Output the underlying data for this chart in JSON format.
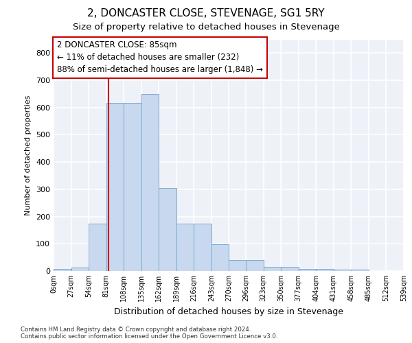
{
  "title": "2, DONCASTER CLOSE, STEVENAGE, SG1 5RY",
  "subtitle": "Size of property relative to detached houses in Stevenage",
  "xlabel": "Distribution of detached houses by size in Stevenage",
  "ylabel": "Number of detached properties",
  "bin_edges": [
    0,
    27,
    54,
    81,
    108,
    135,
    162,
    189,
    216,
    243,
    270,
    296,
    323,
    350,
    377,
    404,
    431,
    458,
    485,
    512,
    539
  ],
  "bar_heights": [
    7,
    13,
    175,
    617,
    617,
    650,
    305,
    175,
    175,
    97,
    40,
    40,
    14,
    14,
    8,
    7,
    5,
    5,
    0,
    0
  ],
  "bar_color": "#c8d8ee",
  "bar_edge_color": "#7aaad0",
  "vline_x": 85,
  "vline_color": "#cc0000",
  "ylim": [
    0,
    850
  ],
  "yticks": [
    0,
    100,
    200,
    300,
    400,
    500,
    600,
    700,
    800
  ],
  "annotation_text": "2 DONCASTER CLOSE: 85sqm\n← 11% of detached houses are smaller (232)\n88% of semi-detached houses are larger (1,848) →",
  "annotation_box_color": "#ffffff",
  "annotation_box_edge": "#cc0000",
  "footer_line1": "Contains HM Land Registry data © Crown copyright and database right 2024.",
  "footer_line2": "Contains public sector information licensed under the Open Government Licence v3.0.",
  "background_color": "#ffffff",
  "plot_bg_color": "#eef2f8",
  "grid_color": "#ffffff",
  "title_fontsize": 11,
  "subtitle_fontsize": 9.5,
  "tick_labels": [
    "0sqm",
    "27sqm",
    "54sqm",
    "81sqm",
    "108sqm",
    "135sqm",
    "162sqm",
    "189sqm",
    "216sqm",
    "243sqm",
    "270sqm",
    "296sqm",
    "323sqm",
    "350sqm",
    "377sqm",
    "404sqm",
    "431sqm",
    "458sqm",
    "485sqm",
    "512sqm",
    "539sqm"
  ]
}
